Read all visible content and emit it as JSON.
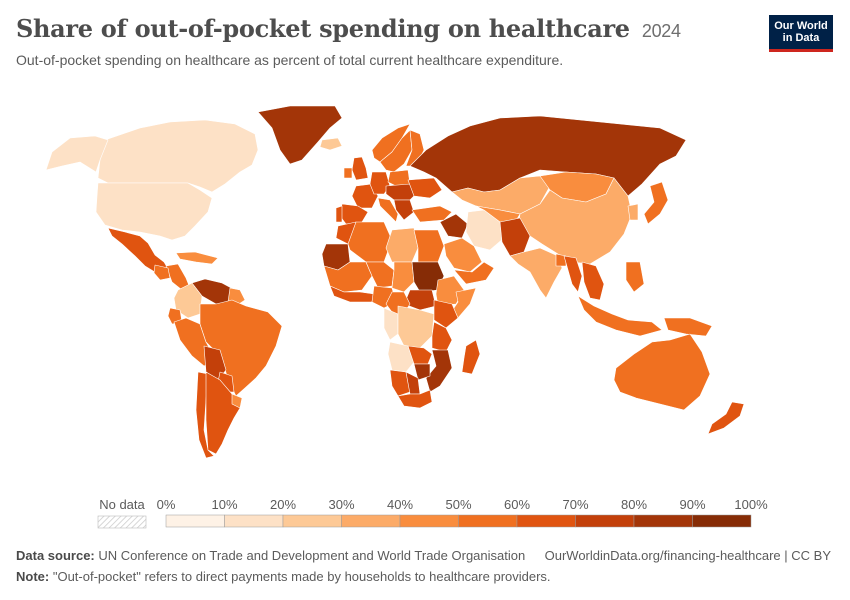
{
  "header": {
    "title": "Share of out-of-pocket spending on healthcare",
    "year": "2024",
    "subtitle": "Out-of-pocket spending on healthcare as percent of total current healthcare expenditure."
  },
  "logo": {
    "line1": "Our World",
    "line2": "in Data"
  },
  "legend": {
    "no_data_label": "No data",
    "ticks": [
      "0%",
      "10%",
      "20%",
      "30%",
      "40%",
      "50%",
      "60%",
      "70%",
      "80%",
      "90%",
      "100%"
    ],
    "colors": [
      "#fef2e6",
      "#fde1c6",
      "#fdc996",
      "#fcab68",
      "#f98d3e",
      "#f07020",
      "#e05410",
      "#c3400a",
      "#a33508",
      "#862c06"
    ]
  },
  "footer": {
    "source_label": "Data source:",
    "source_text": "UN Conference on Trade and Development and World Trade Organisation",
    "url": "OurWorldinData.org/financing-healthcare | CC BY",
    "note_label": "Note:",
    "note_text": "\"Out-of-pocket\" refers to direct payments made by households to healthcare providers."
  },
  "map_regions": [
    {
      "name": "Canada",
      "value": 14
    },
    {
      "name": "United States",
      "value": 11
    },
    {
      "name": "Alaska",
      "value": 11
    },
    {
      "name": "Greenland",
      "value": 85
    },
    {
      "name": "Mexico",
      "value": 65
    },
    {
      "name": "Central America",
      "value": 55
    },
    {
      "name": "Guatemala",
      "value": 55
    },
    {
      "name": "Caribbean",
      "value": 40
    },
    {
      "name": "Venezuela",
      "value": 80
    },
    {
      "name": "Colombia",
      "value": 25
    },
    {
      "name": "Guianas",
      "value": 45
    },
    {
      "name": "Ecuador",
      "value": 50
    },
    {
      "name": "Peru",
      "value": 55
    },
    {
      "name": "Brazil",
      "value": 55
    },
    {
      "name": "Bolivia",
      "value": 75
    },
    {
      "name": "Paraguay",
      "value": 65
    },
    {
      "name": "Chile",
      "value": 60
    },
    {
      "name": "Argentina",
      "value": 60
    },
    {
      "name": "Uruguay",
      "value": 45
    },
    {
      "name": "Iceland",
      "value": 25
    },
    {
      "name": "Norway",
      "value": 55
    },
    {
      "name": "Sweden",
      "value": 55
    },
    {
      "name": "Finland",
      "value": 55
    },
    {
      "name": "United Kingdom",
      "value": 60
    },
    {
      "name": "Ireland",
      "value": 55
    },
    {
      "name": "France",
      "value": 65
    },
    {
      "name": "Spain",
      "value": 62
    },
    {
      "name": "Portugal",
      "value": 60
    },
    {
      "name": "Germany",
      "value": 60
    },
    {
      "name": "Italy",
      "value": 55
    },
    {
      "name": "Poland",
      "value": 55
    },
    {
      "name": "Eastern Europe",
      "value": 70
    },
    {
      "name": "Ukraine",
      "value": 60
    },
    {
      "name": "Balkans",
      "value": 75
    },
    {
      "name": "Russia",
      "value": 85
    },
    {
      "name": "Kazakhstan",
      "value": 35
    },
    {
      "name": "Mongolia",
      "value": 40
    },
    {
      "name": "China",
      "value": 35
    },
    {
      "name": "Turkey",
      "value": 50
    },
    {
      "name": "Syria and Iraq",
      "value": 80
    },
    {
      "name": "Iran",
      "value": 15
    },
    {
      "name": "Central Asia",
      "value": 45
    },
    {
      "name": "Afghanistan and Pakistan",
      "value": 70
    },
    {
      "name": "Saudi Arabia",
      "value": 45
    },
    {
      "name": "Yemen and Oman",
      "value": 50
    },
    {
      "name": "India",
      "value": 35
    },
    {
      "name": "Bangladesh",
      "value": 55
    },
    {
      "name": "Myanmar",
      "value": 60
    },
    {
      "name": "Southeast Asia",
      "value": 65
    },
    {
      "name": "Korea",
      "value": 30
    },
    {
      "name": "Japan",
      "value": 55
    },
    {
      "name": "Indonesia",
      "value": 55
    },
    {
      "name": "Philippines",
      "value": 55
    },
    {
      "name": "Papua New Guinea",
      "value": 55
    },
    {
      "name": "Australia",
      "value": 55
    },
    {
      "name": "New Zealand",
      "value": 65
    },
    {
      "name": "Morocco",
      "value": 65
    },
    {
      "name": "Western Sahara and Mauritania",
      "value": 80
    },
    {
      "name": "Algeria",
      "value": 50
    },
    {
      "name": "Libya",
      "value": 35
    },
    {
      "name": "Egypt",
      "value": 55
    },
    {
      "name": "West Africa Sahel",
      "value": 50
    },
    {
      "name": "Niger",
      "value": 50
    },
    {
      "name": "Chad",
      "value": 45
    },
    {
      "name": "Sudan",
      "value": 90
    },
    {
      "name": "South Sudan",
      "value": 75
    },
    {
      "name": "Ethiopia",
      "value": 45
    },
    {
      "name": "Somalia",
      "value": 40
    },
    {
      "name": "Gulf of Guinea",
      "value": 65
    },
    {
      "name": "Nigeria",
      "value": 55
    },
    {
      "name": "Cameroon and Central African Republic",
      "value": 55
    },
    {
      "name": "Gabon and Congo",
      "value": 15
    },
    {
      "name": "DR Congo",
      "value": 25
    },
    {
      "name": "Uganda and Kenya",
      "value": 60
    },
    {
      "name": "Tanzania",
      "value": 65
    },
    {
      "name": "Angola",
      "value": 12
    },
    {
      "name": "Zambia",
      "value": 65
    },
    {
      "name": "Mozambique and Malawi",
      "value": 80
    },
    {
      "name": "Zimbabwe",
      "value": 80
    },
    {
      "name": "Namibia",
      "value": 60
    },
    {
      "name": "Botswana",
      "value": 70
    },
    {
      "name": "South Africa",
      "value": 60
    },
    {
      "name": "Madagascar",
      "value": 62
    }
  ]
}
